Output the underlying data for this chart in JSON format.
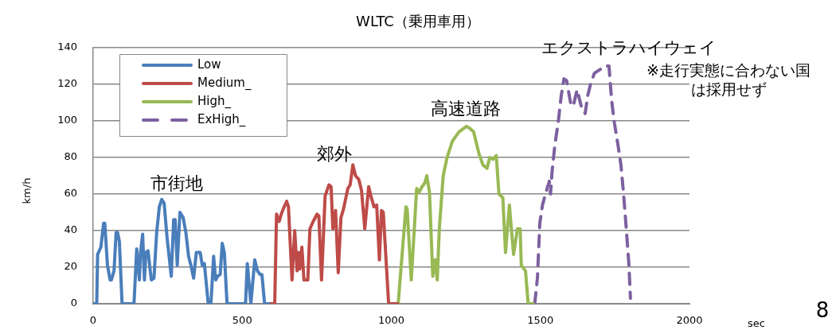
{
  "chart_data": {
    "type": "line",
    "title": "WLTC（乗用車用）",
    "xlabel": "sec",
    "ylabel": "km/h",
    "xlim": [
      0,
      2000
    ],
    "xticks": [
      0,
      500,
      1000,
      1500,
      2000
    ],
    "ylim": [
      0,
      140
    ],
    "yticks": [
      0,
      20,
      40,
      60,
      80,
      100,
      120,
      140
    ],
    "grid": "y",
    "legend": "top left",
    "marker": "none",
    "annotations": [
      "市街地",
      "郊外",
      "高速道路",
      "エクストラハイウェイ",
      "※走行実態に合わない国は採用せず",
      "8"
    ],
    "series": [
      {
        "name": "Low",
        "color": "#4a7ebb",
        "line_style": "solid",
        "x": [
          0,
          12,
          15,
          26,
          35,
          39,
          48,
          57,
          61,
          70,
          77,
          82,
          88,
          97,
          137,
          146,
          155,
          159,
          166,
          172,
          177,
          184,
          195,
          204,
          213,
          222,
          230,
          238,
          248,
          262,
          270,
          275,
          282,
          291,
          302,
          311,
          320,
          328,
          337,
          346,
          359,
          366,
          373,
          386,
          395,
          404,
          411,
          417,
          426,
          433,
          440,
          449,
          511,
          517,
          529,
          542,
          551,
          560,
          566,
          575,
          589
        ],
        "values": [
          0,
          0,
          27,
          31,
          44,
          44,
          21,
          13,
          13,
          18,
          39,
          39,
          34,
          0,
          0,
          30,
          13,
          28,
          38,
          13,
          28,
          29,
          13,
          14,
          39,
          53,
          57,
          55,
          36,
          15,
          46,
          46,
          21,
          50,
          47,
          39,
          26,
          21,
          14,
          28,
          28,
          21,
          22,
          0,
          0,
          26,
          13,
          15,
          16,
          33,
          28,
          0,
          0,
          22,
          0,
          24,
          18,
          16,
          16,
          0,
          0
        ]
      },
      {
        "name": "Medium_",
        "color": "#be4b48",
        "line_style": "solid",
        "x": [
          589,
          609,
          615,
          624,
          631,
          638,
          649,
          655,
          667,
          676,
          684,
          689,
          693,
          700,
          707,
          720,
          727,
          738,
          751,
          757,
          766,
          778,
          791,
          798,
          804,
          813,
          822,
          831,
          840,
          854,
          862,
          871,
          880,
          891,
          900,
          911,
          924,
          933,
          942,
          951,
          960,
          967,
          973,
          991,
          1022
        ],
        "values": [
          0,
          0,
          49,
          45,
          49,
          52,
          56,
          53,
          13,
          40,
          18,
          28,
          19,
          31,
          13,
          13,
          41,
          45,
          49,
          48,
          13,
          59,
          65,
          64,
          41,
          51,
          17,
          47,
          52,
          63,
          65,
          76,
          70,
          68,
          62,
          41,
          64,
          58,
          53,
          54,
          24,
          51,
          50,
          0,
          0
        ]
      },
      {
        "name": "High_",
        "color": "#98b954",
        "line_style": "solid",
        "x": [
          1023,
          1049,
          1053,
          1067,
          1085,
          1093,
          1103,
          1112,
          1119,
          1128,
          1139,
          1147,
          1154,
          1161,
          1174,
          1187,
          1205,
          1227,
          1252,
          1263,
          1276,
          1294,
          1307,
          1321,
          1330,
          1341,
          1352,
          1361,
          1374,
          1383,
          1396,
          1410,
          1423,
          1432,
          1436,
          1450,
          1459,
          1476
        ],
        "values": [
          0,
          53,
          52,
          13,
          63,
          61,
          64,
          66,
          70,
          61,
          15,
          24,
          13,
          41,
          70,
          80,
          89,
          94,
          97,
          96,
          94,
          82,
          76,
          74,
          80,
          79,
          81,
          60,
          58,
          28,
          54,
          27,
          41,
          41,
          21,
          18,
          0,
          0
        ]
      },
      {
        "name": "ExHigh_",
        "color": "#7d60a0",
        "line_style": "dashed",
        "x": [
          1481,
          1490,
          1498,
          1507,
          1517,
          1530,
          1534,
          1539,
          1548,
          1561,
          1570,
          1579,
          1588,
          1601,
          1610,
          1623,
          1637,
          1650,
          1659,
          1668,
          1681,
          1699,
          1717,
          1730,
          1739,
          1748,
          1761,
          1770,
          1779,
          1788,
          1797,
          1802
        ],
        "values": [
          0,
          14,
          44,
          54,
          60,
          67,
          60,
          72,
          86,
          101,
          114,
          123,
          122,
          110,
          108,
          117,
          108,
          104,
          114,
          120,
          126,
          128,
          130,
          130,
          111,
          99,
          86,
          76,
          60,
          41,
          21,
          3
        ]
      }
    ]
  }
}
